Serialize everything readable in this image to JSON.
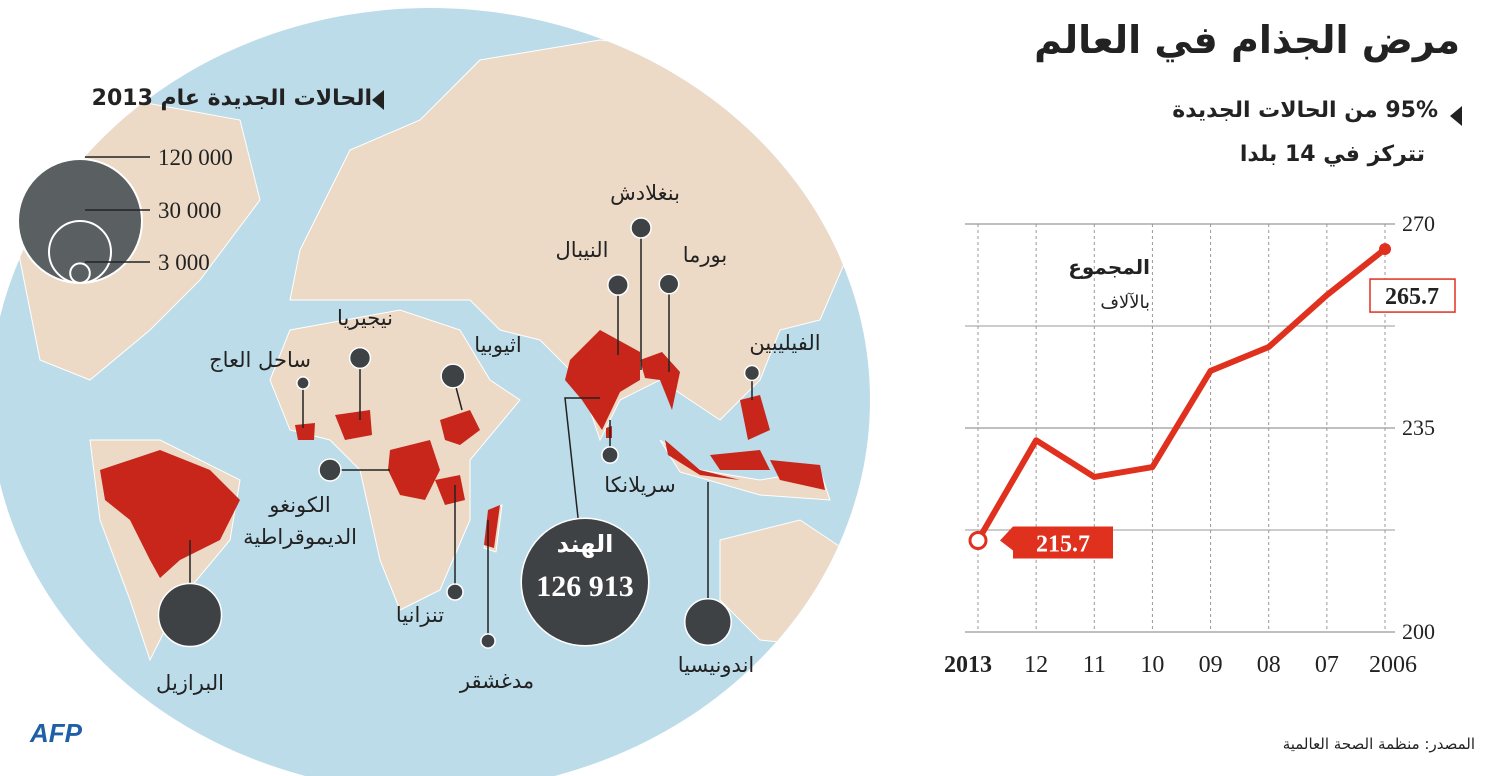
{
  "title": "مرض الجذام في العالم",
  "subtitle": [
    "95% من الحالات الجديدة",
    "تتركز في 14 بلدا"
  ],
  "source": "المصدر: منظمة الصحة العالمية",
  "logo": "AFP",
  "chart_data": [
    {
      "type": "bubble_map",
      "title": "الحالات الجديدة عام 2013",
      "categories": [
        "البرازيل",
        "الهند",
        "اندونيسيا",
        "مدغشقر",
        "تنزانيا",
        "الكونغو الديموقراطية",
        "ساحل العاج",
        "نيجيريا",
        "اثيوبيا",
        "النيبال",
        "بنغلادش",
        "بورما",
        "الفيليبين",
        "سريلانكا"
      ],
      "values": [
        31044,
        126913,
        16856,
        1569,
        2005,
        3744,
        1169,
        3385,
        4374,
        3225,
        3141,
        2950,
        1729,
        2064
      ],
      "value_labels": [
        null,
        "126 913",
        null,
        null,
        null,
        null,
        null,
        null,
        null,
        null,
        null,
        null,
        null,
        null
      ],
      "size_legend": [
        {
          "value": 120000,
          "label": "120 000"
        },
        {
          "value": 30000,
          "label": "30 000"
        },
        {
          "value": 3000,
          "label": "3 000"
        }
      ],
      "color": "#3f4245"
    },
    {
      "type": "line",
      "title": "المجموع",
      "subtitle": "بالآلاف",
      "categories": [
        "2006",
        "07",
        "08",
        "09",
        "10",
        "11",
        "12",
        "2013"
      ],
      "values": [
        265.7,
        257.8,
        248.9,
        244.8,
        228.3,
        226.6,
        232.9,
        215.7
      ],
      "color": "#e0301e",
      "ylim": [
        200,
        270
      ],
      "yticks": [
        200,
        235,
        270
      ],
      "ygrid": [
        217.5,
        252.5
      ],
      "grid": true
    }
  ]
}
